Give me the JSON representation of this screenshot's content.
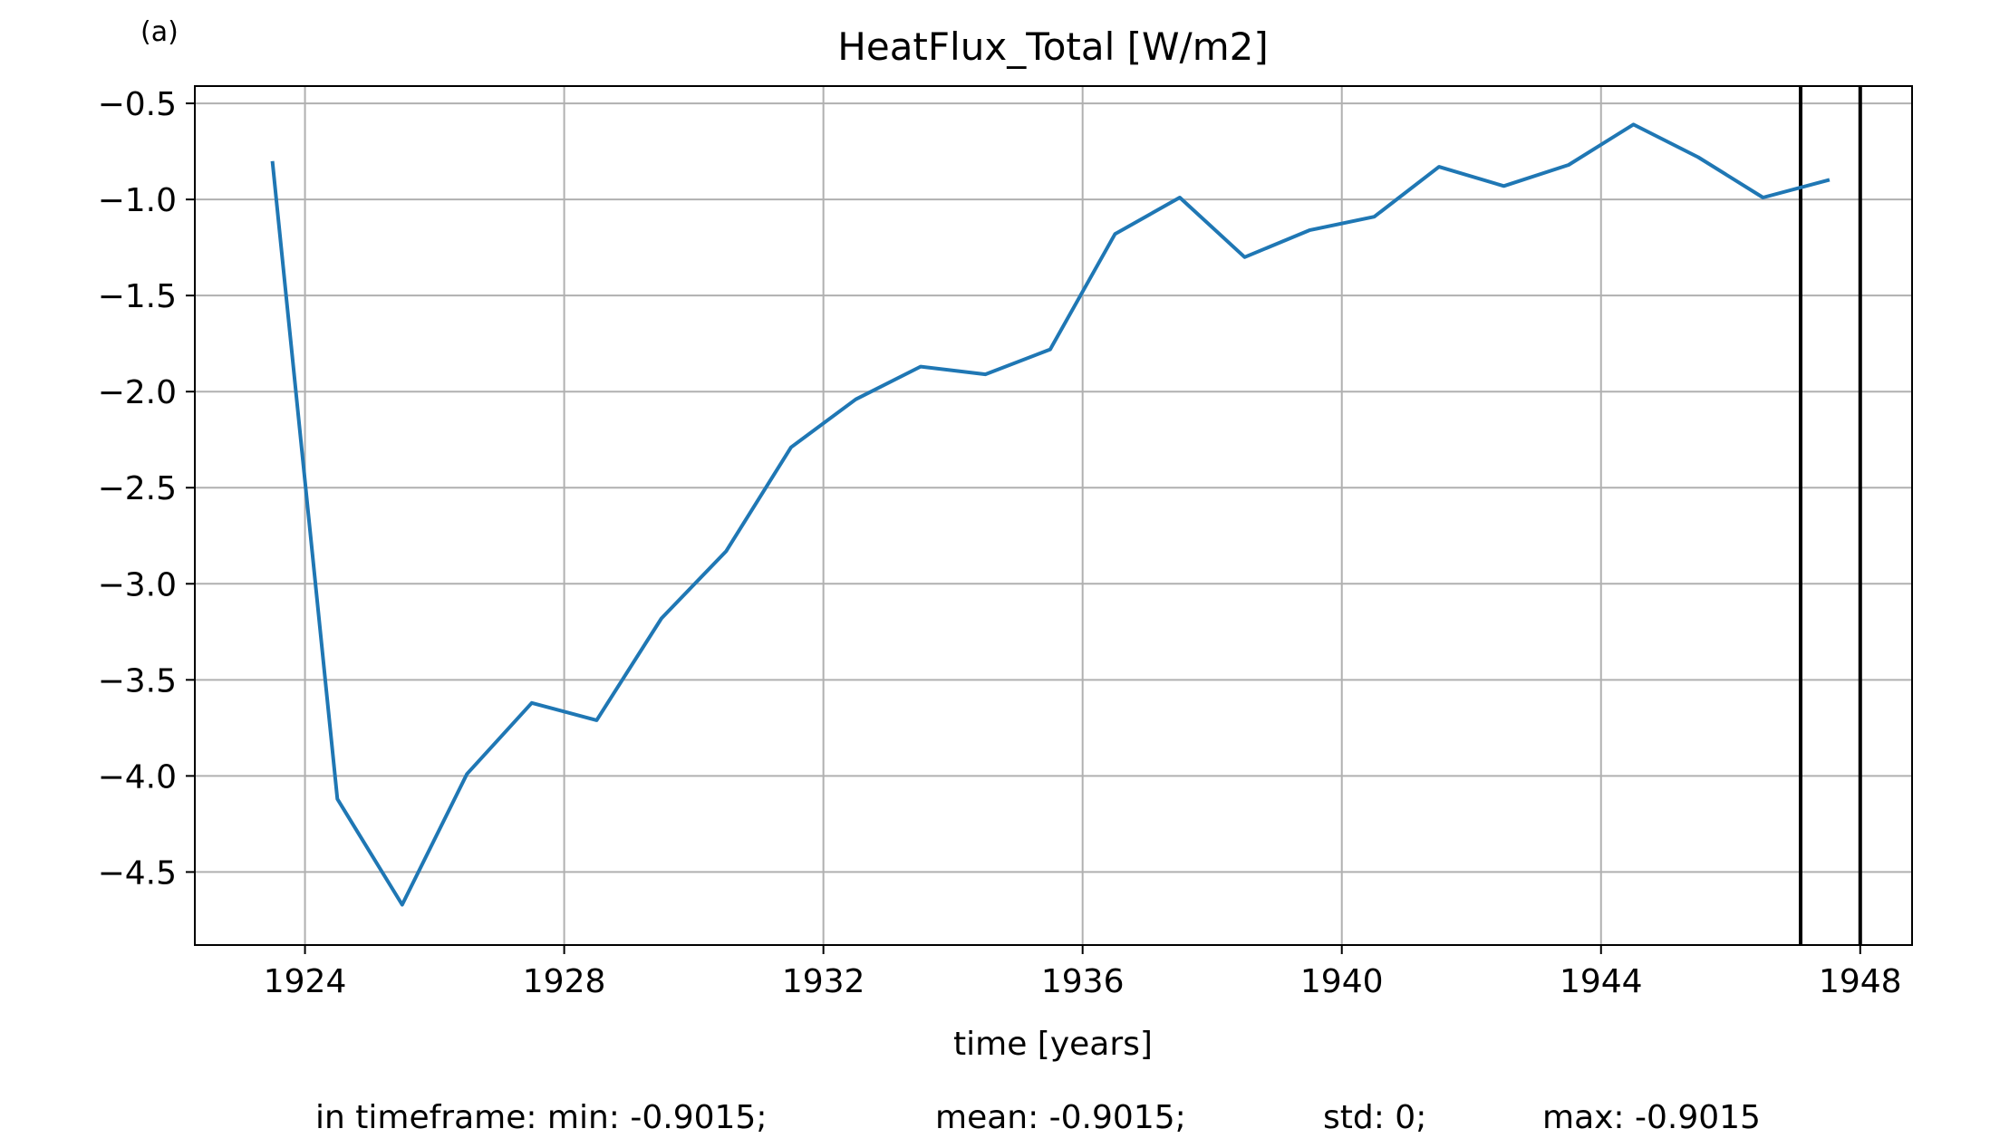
{
  "panel_label": "(a)",
  "chart_data": {
    "type": "line",
    "title": "HeatFlux_Total [W/m2]",
    "xlabel": "time [years]",
    "ylabel": "",
    "xlim": [
      1922.3,
      1948.8
    ],
    "ylim": [
      -4.88,
      -0.41
    ],
    "x_ticks": [
      1924,
      1928,
      1932,
      1936,
      1940,
      1944,
      1948
    ],
    "x_tick_labels": [
      "1924",
      "1928",
      "1932",
      "1936",
      "1940",
      "1944",
      "1948"
    ],
    "y_ticks": [
      -0.5,
      -1.0,
      -1.5,
      -2.0,
      -2.5,
      -3.0,
      -3.5,
      -4.0,
      -4.5
    ],
    "y_tick_labels": [
      "−0.5",
      "−1.0",
      "−1.5",
      "−2.0",
      "−2.5",
      "−3.0",
      "−3.5",
      "−4.0",
      "−4.5"
    ],
    "grid": true,
    "series": [
      {
        "color": "#1f77b4",
        "x": [
          1923.5,
          1924.5,
          1925.5,
          1926.5,
          1927.5,
          1928.5,
          1929.5,
          1930.5,
          1931.5,
          1932.5,
          1933.5,
          1934.5,
          1935.5,
          1936.5,
          1937.5,
          1938.5,
          1939.5,
          1940.5,
          1941.5,
          1942.5,
          1943.5,
          1944.5,
          1945.5,
          1946.5,
          1947.5
        ],
        "y": [
          -0.81,
          -4.12,
          -4.67,
          -3.99,
          -3.62,
          -3.71,
          -3.18,
          -2.83,
          -2.29,
          -2.04,
          -1.87,
          -1.91,
          -1.78,
          -1.18,
          -0.99,
          -1.3,
          -1.16,
          -1.09,
          -0.83,
          -0.93,
          -0.82,
          -0.61,
          -0.78,
          -0.99,
          -0.9
        ]
      }
    ],
    "vertical_lines": [
      {
        "x": 1947.08,
        "color": "#000000"
      },
      {
        "x": 1948.0,
        "color": "#000000"
      }
    ]
  },
  "stats": {
    "min": "in timeframe: min: -0.9015;",
    "mean": "mean: -0.9015;",
    "std": "std: 0;",
    "max": "max: -0.9015"
  }
}
